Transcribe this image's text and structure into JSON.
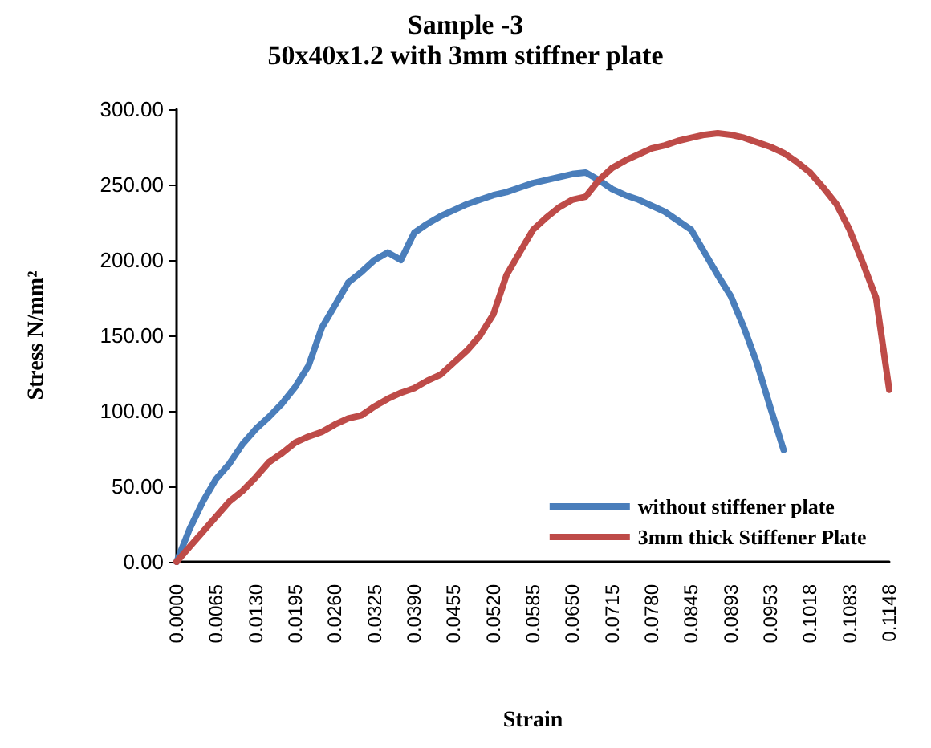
{
  "chart_data": {
    "type": "line",
    "title": "Sample -3",
    "subtitle": "50x40x1.2 with 3mm stiffner plate",
    "xlabel": "Strain",
    "ylabel": "Stress N/mm²",
    "categories": [
      "0.0000",
      null,
      null,
      "0.0065",
      null,
      null,
      "0.0130",
      null,
      null,
      "0.0195",
      null,
      null,
      "0.0260",
      null,
      null,
      "0.0325",
      null,
      null,
      "0.0390",
      null,
      null,
      "0.0455",
      null,
      null,
      "0.0520",
      null,
      null,
      "0.0585",
      null,
      null,
      "0.0650",
      null,
      null,
      "0.0715",
      null,
      null,
      "0.0780",
      null,
      null,
      "0.0845",
      null,
      null,
      "0.0893",
      null,
      null,
      "0.0953",
      null,
      null,
      "0.1018",
      null,
      null,
      "0.1083",
      null,
      null,
      "0.1148"
    ],
    "series": [
      {
        "name": "without stiffener plate",
        "color": "#4a7ebb",
        "values": [
          0,
          22,
          40,
          55,
          65,
          78,
          88,
          96,
          105,
          116,
          130,
          155,
          170,
          185,
          192,
          200,
          205,
          200,
          218,
          224,
          229,
          233,
          237,
          240,
          243,
          245,
          248,
          251,
          253,
          255,
          257,
          258,
          253,
          247,
          243,
          240,
          236,
          232,
          226,
          220,
          205,
          190,
          176,
          155,
          131,
          102,
          74,
          null,
          null,
          null,
          null,
          null,
          null,
          null,
          null
        ]
      },
      {
        "name": "3mm thick Stiffener Plate",
        "color": "#be4b48",
        "values": [
          0,
          10,
          20,
          30,
          40,
          47,
          56,
          66,
          72,
          79,
          83,
          86,
          91,
          95,
          97,
          103,
          108,
          112,
          115,
          120,
          124,
          132,
          140,
          150,
          164,
          190,
          205,
          220,
          228,
          235,
          240,
          242,
          253,
          261,
          266,
          270,
          274,
          276,
          279,
          281,
          283,
          284,
          283,
          281,
          278,
          275,
          271,
          265,
          258,
          248,
          237,
          220,
          198,
          175,
          114
        ]
      }
    ],
    "ylim": [
      0,
      300
    ],
    "yticks": [
      {
        "value": 0,
        "label": "0.00"
      },
      {
        "value": 50,
        "label": "50.00"
      },
      {
        "value": 100,
        "label": "100.00"
      },
      {
        "value": 150,
        "label": "150.00"
      },
      {
        "value": 200,
        "label": "200.00"
      },
      {
        "value": 250,
        "label": "250.00"
      },
      {
        "value": 300,
        "label": "300.00"
      }
    ],
    "grid": false,
    "legend": "bottom right",
    "marker": "none",
    "line_style": "solid"
  }
}
